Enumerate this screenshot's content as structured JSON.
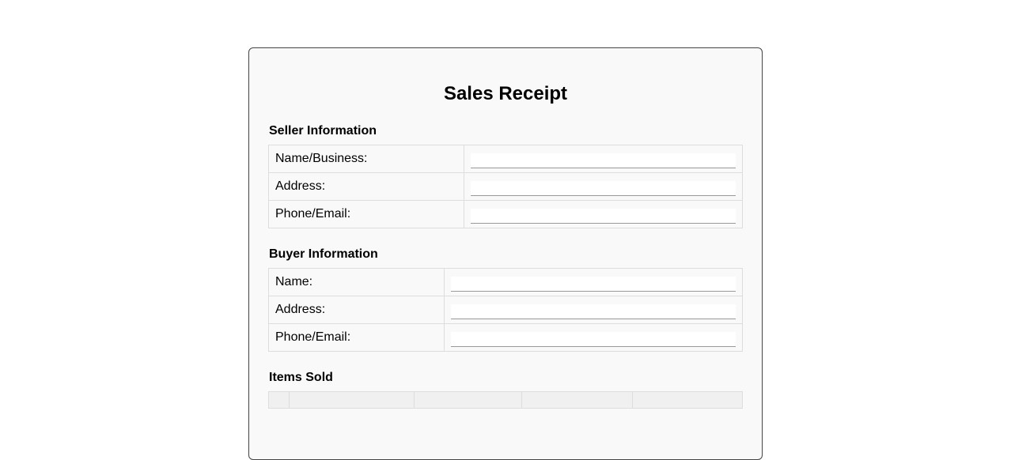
{
  "title": "Sales Receipt",
  "seller": {
    "heading": "Seller Information",
    "rows": [
      {
        "label": "Name/Business:",
        "value": ""
      },
      {
        "label": "Address:",
        "value": ""
      },
      {
        "label": "Phone/Email:",
        "value": ""
      }
    ]
  },
  "buyer": {
    "heading": "Buyer Information",
    "rows": [
      {
        "label": "Name:",
        "value": ""
      },
      {
        "label": "Address:",
        "value": ""
      },
      {
        "label": "Phone/Email:",
        "value": ""
      }
    ]
  },
  "items": {
    "heading": "Items Sold"
  }
}
